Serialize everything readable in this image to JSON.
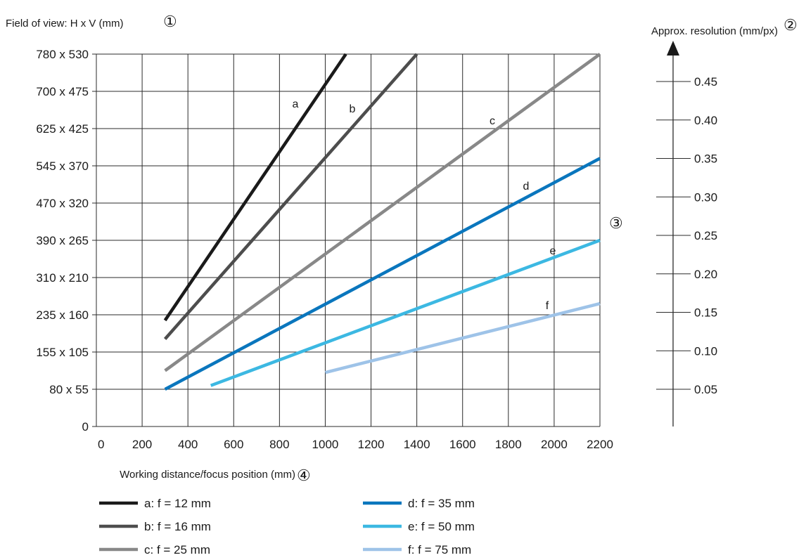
{
  "chart_data": {
    "type": "line",
    "title": "",
    "ylabel": "Field of view: H x V (mm)",
    "ylabel_marker": "①",
    "y2label": "Approx. resolution (mm/px)",
    "y2label_marker": "②",
    "axis3_marker": "③",
    "xlabel": "Working distance/focus position (mm)",
    "xlabel_marker": "④",
    "xlim": [
      0,
      2200
    ],
    "x_ticks": [
      0,
      200,
      400,
      600,
      800,
      1000,
      1200,
      1400,
      1600,
      1800,
      2000,
      2200
    ],
    "y_tick_labels": [
      "0",
      "80 x 55",
      "155 x 105",
      "235 x 160",
      "310 x 210",
      "390 x 265",
      "470 x 320",
      "545 x 370",
      "625 x 425",
      "700 x 475",
      "780 x 530"
    ],
    "y_ticks_value": [
      0,
      80,
      155,
      235,
      310,
      390,
      470,
      545,
      625,
      700,
      780
    ],
    "y2_ticks": [
      "0.05",
      "0.10",
      "0.15",
      "0.20",
      "0.25",
      "0.30",
      "0.35",
      "0.40",
      "0.45"
    ],
    "grid": true,
    "legend_position": "bottom",
    "series": [
      {
        "name": "a: f = 12 mm",
        "curve_label": "a",
        "color": "#1a1a1a",
        "x": [
          300,
          1090
        ],
        "y_grid_index": [
          2.85,
          10
        ]
      },
      {
        "name": "b: f = 16 mm",
        "curve_label": "b",
        "color": "#4d4d4d",
        "x": [
          300,
          1400
        ],
        "y_grid_index": [
          2.35,
          10
        ]
      },
      {
        "name": "c: f = 25 mm",
        "curve_label": "c",
        "color": "#888888",
        "x": [
          300,
          2200
        ],
        "y_grid_index": [
          1.5,
          10
        ]
      },
      {
        "name": "d: f = 35 mm",
        "curve_label": "d",
        "color": "#0a76bd",
        "x": [
          300,
          2200
        ],
        "y_grid_index": [
          1.0,
          7.2
        ]
      },
      {
        "name": "e: f = 50 mm",
        "curve_label": "e",
        "color": "#3cb8e2",
        "x": [
          500,
          2200
        ],
        "y_grid_index": [
          1.1,
          5.0
        ]
      },
      {
        "name": "f:  f = 75 mm",
        "curve_label": "f",
        "color": "#9ec3e8",
        "x": [
          1000,
          2200
        ],
        "y_grid_index": [
          1.45,
          3.3
        ]
      }
    ]
  }
}
